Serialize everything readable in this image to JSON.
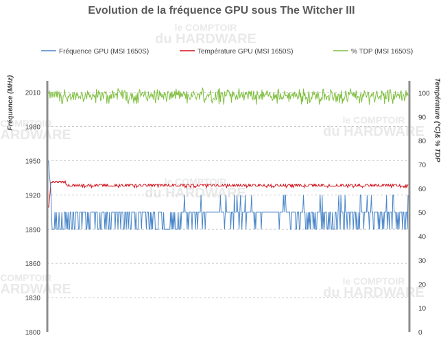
{
  "chart_data": {
    "type": "line",
    "title": "Evolution de la fréquence GPU sous The Witcher III",
    "ylabel_left": "Fréquence (MHz)",
    "ylabel_right": "Température (°C)& % TDP",
    "ylim_left": [
      1800,
      2020
    ],
    "ylim_right": [
      0,
      105
    ],
    "yticks_left": [
      "1800",
      "1830",
      "1860",
      "1890",
      "1920",
      "1950",
      "1980",
      "2010"
    ],
    "yticks_right": [
      "0",
      "10",
      "20",
      "30",
      "40",
      "50",
      "60",
      "70",
      "80",
      "90",
      "100"
    ],
    "legend_position": "top",
    "grid": "horizontal dashed",
    "watermark": "le COMPTOIR du HARDWARE",
    "series": [
      {
        "name": "Fréquence GPU (MSI 1650S)",
        "axis": "left",
        "color": "#4a86c8",
        "baseline": 1905,
        "dip": 1890,
        "spike": 1920,
        "start_spike": 1950
      },
      {
        "name": "Température GPU  (MSI 1650S)",
        "axis": "right",
        "color": "#d0101a",
        "start": 52,
        "plateau": 61,
        "peak": 63
      },
      {
        "name": "% TDP (MSI 1650S)",
        "axis": "right",
        "color": "#7fbf3f",
        "mean": 99,
        "min": 95,
        "max": 102
      }
    ]
  }
}
